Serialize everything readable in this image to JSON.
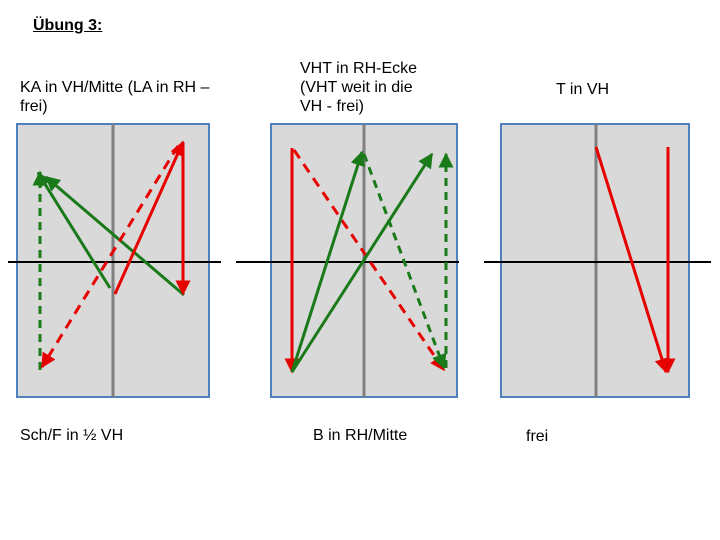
{
  "title": "Übung 3:",
  "panels": [
    {
      "top_label": "KA in VH/Mitte (LA in RH – frei)",
      "bottom_label": "Sch/F in ½ VH"
    },
    {
      "top_label": "VHT in RH-Ecke (VHT weit in die VH - frei)",
      "bottom_label": "B in RH/Mitte"
    },
    {
      "top_label": "T in VH",
      "bottom_label": "frei"
    }
  ],
  "colors": {
    "field": "#d9d9d9",
    "field_border": "#4f81bd",
    "center_line": "#808080",
    "net_line": "#000000",
    "red": "#e60000",
    "green": "#1a7a1a"
  }
}
